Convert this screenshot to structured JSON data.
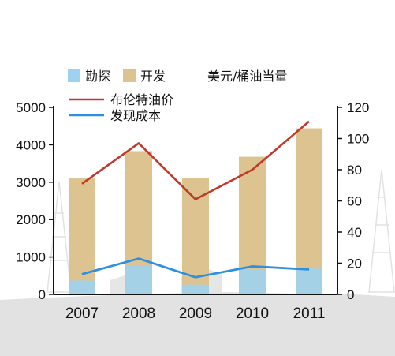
{
  "chart_data": {
    "type": "bar",
    "categories": [
      "2007",
      "2008",
      "2009",
      "2010",
      "2011"
    ],
    "bar_series": [
      {
        "name": "勘探",
        "values": [
          370,
          770,
          260,
          670,
          690
        ],
        "color": "#9dd3f0"
      },
      {
        "name": "开发",
        "values": [
          3100,
          3830,
          3110,
          3680,
          4440
        ],
        "color": "#dcc38f"
      }
    ],
    "line_series": [
      {
        "name": "布伦特油价",
        "values": [
          71,
          97,
          61,
          80,
          111
        ],
        "color": "#c0392b"
      },
      {
        "name": "发现成本",
        "values": [
          13,
          23,
          11,
          18,
          16
        ],
        "color": "#2f8fe0"
      }
    ],
    "unit_label": "美元/桶油当量",
    "y_left": {
      "min": 0,
      "max": 5000,
      "ticks": [
        0,
        1000,
        2000,
        3000,
        4000,
        5000
      ]
    },
    "y_right": {
      "min": 0,
      "max": 120,
      "ticks": [
        0,
        20,
        40,
        60,
        80,
        100,
        120
      ]
    },
    "legend_placement": "top"
  }
}
